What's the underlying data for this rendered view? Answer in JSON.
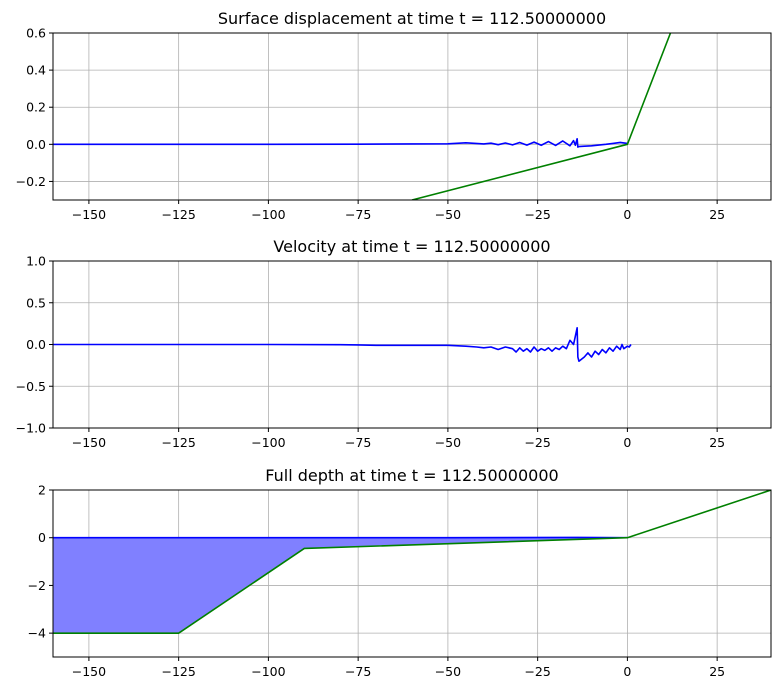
{
  "chart_data": [
    {
      "type": "line",
      "title": "Surface displacement at time t =   112.50000000",
      "xlim": [
        -160,
        40
      ],
      "ylim": [
        -0.3,
        0.6
      ],
      "grid": true,
      "x_ticks": [
        -150,
        -125,
        -100,
        -75,
        -50,
        -25,
        0,
        25
      ],
      "x_tick_labels": [
        "−150",
        "−125",
        "−100",
        "−75",
        "−50",
        "−25",
        "0",
        "25"
      ],
      "y_ticks": [
        -0.2,
        0.0,
        0.2,
        0.4,
        0.6
      ],
      "y_tick_labels": [
        "−0.2",
        "0.0",
        "0.2",
        "0.4",
        "0.6"
      ],
      "series": [
        {
          "color": "#0000ff",
          "x": [
            -160,
            -100,
            -75,
            -60,
            -50,
            -45,
            -40,
            -38,
            -36,
            -34,
            -32,
            -30,
            -28,
            -26,
            -24,
            -22,
            -20,
            -18,
            -16,
            -15,
            -14.5,
            -14,
            -13.8,
            -13.6,
            -12,
            -10,
            -8,
            -6,
            -4,
            -2,
            0
          ],
          "y": [
            0.0,
            0.0,
            0.001,
            0.002,
            0.003,
            0.008,
            0.002,
            0.006,
            -0.002,
            0.007,
            -0.003,
            0.01,
            -0.004,
            0.012,
            -0.005,
            0.015,
            -0.006,
            0.018,
            -0.008,
            0.02,
            -0.005,
            0.03,
            -0.015,
            -0.012,
            -0.01,
            -0.008,
            -0.004,
            0.0,
            0.005,
            0.01,
            0.005
          ]
        },
        {
          "color": "#008000",
          "x": [
            -60,
            0,
            12
          ],
          "y": [
            -0.3,
            0.0,
            0.6
          ]
        }
      ]
    },
    {
      "type": "line",
      "title": "Velocity at time t =   112.50000000",
      "xlim": [
        -160,
        40
      ],
      "ylim": [
        -1.0,
        1.0
      ],
      "grid": true,
      "x_ticks": [
        -150,
        -125,
        -100,
        -75,
        -50,
        -25,
        0,
        25
      ],
      "x_tick_labels": [
        "−150",
        "−125",
        "−100",
        "−75",
        "−50",
        "−25",
        "0",
        "25"
      ],
      "y_ticks": [
        -1.0,
        -0.5,
        0.0,
        0.5,
        1.0
      ],
      "y_tick_labels": [
        "−1.0",
        "−0.5",
        "0.0",
        "0.5",
        "1.0"
      ],
      "series": [
        {
          "color": "#0000ff",
          "x": [
            -160,
            -100,
            -80,
            -75,
            -70,
            -60,
            -50,
            -45,
            -42,
            -40,
            -38,
            -36,
            -34,
            -32,
            -31,
            -30,
            -29,
            -28,
            -27,
            -26,
            -25,
            -24,
            -23,
            -22,
            -21,
            -20,
            -19,
            -18,
            -17,
            -16,
            -15,
            -14.5,
            -14,
            -13.8,
            -13.5,
            -12,
            -11,
            -10,
            -9,
            -8,
            -7,
            -6,
            -5,
            -4,
            -3,
            -2,
            -1.5,
            -1,
            0,
            0.5,
            1
          ],
          "y": [
            0.0,
            0.0,
            -0.002,
            -0.005,
            -0.01,
            -0.01,
            -0.01,
            -0.02,
            -0.03,
            -0.04,
            -0.03,
            -0.06,
            -0.03,
            -0.05,
            -0.09,
            -0.04,
            -0.08,
            -0.05,
            -0.09,
            -0.03,
            -0.08,
            -0.05,
            -0.07,
            -0.04,
            -0.08,
            -0.04,
            -0.06,
            -0.02,
            -0.05,
            0.05,
            0.0,
            0.1,
            0.2,
            -0.15,
            -0.2,
            -0.15,
            -0.1,
            -0.15,
            -0.08,
            -0.12,
            -0.06,
            -0.1,
            -0.04,
            -0.08,
            -0.02,
            -0.06,
            0.0,
            -0.05,
            -0.02,
            -0.03,
            0.0
          ]
        }
      ]
    },
    {
      "type": "area",
      "title": "Full depth at time t =   112.50000000",
      "xlim": [
        -160,
        40
      ],
      "ylim": [
        -5,
        2
      ],
      "grid": true,
      "x_ticks": [
        -150,
        -125,
        -100,
        -75,
        -50,
        -25,
        0,
        25
      ],
      "x_tick_labels": [
        "−150",
        "−125",
        "−100",
        "−75",
        "−50",
        "−25",
        "0",
        "25"
      ],
      "y_ticks": [
        -4,
        -2,
        0,
        2
      ],
      "y_tick_labels": [
        "−4",
        "−2",
        "0",
        "2"
      ],
      "fill_color": "#8080ff",
      "surface": {
        "color": "#0000ff",
        "x": [
          -160,
          -100,
          -50,
          -14,
          0
        ],
        "y": [
          0.0,
          0.0,
          0.0,
          0.01,
          0.0
        ]
      },
      "bathymetry": {
        "color": "#008000",
        "x": [
          -160,
          -125,
          -90,
          0,
          40
        ],
        "y": [
          -4.0,
          -4.0,
          -0.45,
          0.0,
          2.0
        ]
      }
    }
  ]
}
